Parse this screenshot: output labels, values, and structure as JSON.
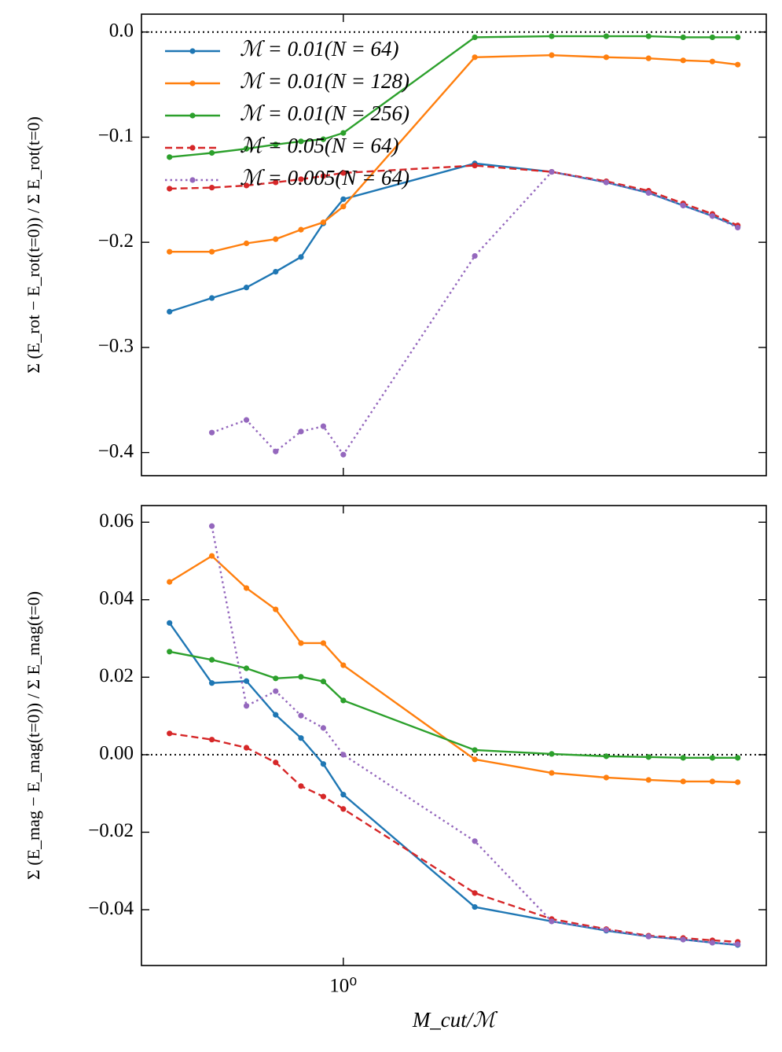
{
  "chart_data": [
    {
      "type": "line",
      "log_x": true,
      "ylabel": "Σ (E_rot − E_rot(t=0)) / Σ E_rot(t=0)",
      "x": [
        0.4,
        0.5,
        0.6,
        0.7,
        0.8,
        0.9,
        1,
        2,
        3,
        4,
        5,
        6,
        7,
        8
      ],
      "xlim": [
        0.345,
        9.3
      ],
      "ylim": [
        -0.422,
        0.017
      ],
      "yticks": [
        {
          "value": 0,
          "label": "0.0"
        },
        {
          "value": -0.1,
          "label": "−0.1"
        },
        {
          "value": -0.2,
          "label": "−0.2"
        },
        {
          "value": -0.3,
          "label": "−0.3"
        },
        {
          "value": -0.4,
          "label": "−0.4"
        }
      ],
      "reference_line": 0,
      "legend": "upper left",
      "series": [
        {
          "name": "ℳ = 0.01(N = 64)",
          "color": "#1f77b4",
          "dash": "solid",
          "values": [
            -0.266,
            -0.253,
            -0.243,
            -0.228,
            -0.214,
            -0.182,
            -0.159,
            -0.125,
            -0.133,
            -0.143,
            -0.153,
            -0.165,
            -0.175,
            -0.185
          ]
        },
        {
          "name": "ℳ = 0.01(N = 128)",
          "color": "#ff7f0e",
          "dash": "solid",
          "values": [
            -0.209,
            -0.209,
            -0.201,
            -0.197,
            -0.188,
            -0.181,
            -0.166,
            -0.024,
            -0.022,
            -0.024,
            -0.025,
            -0.027,
            -0.028,
            -0.031
          ]
        },
        {
          "name": "ℳ = 0.01(N = 256)",
          "color": "#2ca02c",
          "dash": "solid",
          "values": [
            -0.119,
            -0.115,
            -0.111,
            -0.107,
            -0.104,
            -0.102,
            -0.096,
            -0.005,
            -0.004,
            -0.004,
            -0.004,
            -0.005,
            -0.005,
            -0.005
          ]
        },
        {
          "name": "ℳ = 0.05(N = 64)",
          "color": "#d62728",
          "dash": "dashed",
          "values": [
            -0.149,
            -0.148,
            -0.146,
            -0.143,
            -0.14,
            -0.137,
            -0.134,
            -0.127,
            -0.133,
            -0.142,
            -0.151,
            -0.163,
            -0.173,
            -0.184
          ]
        },
        {
          "name": "ℳ = 0.005(N = 64)",
          "color": "#9467bd",
          "dash": "dotted",
          "values": [
            null,
            -0.381,
            -0.369,
            -0.399,
            -0.38,
            -0.375,
            -0.402,
            -0.213,
            -0.133,
            -0.143,
            -0.153,
            -0.165,
            -0.175,
            -0.186
          ]
        }
      ]
    },
    {
      "type": "line",
      "log_x": true,
      "ylabel": "Σ (E_mag − E_mag(t=0)) / Σ E_mag(t=0)",
      "xlabel": "M_cut/ℳ",
      "x": [
        0.4,
        0.5,
        0.6,
        0.7,
        0.8,
        0.9,
        1,
        2,
        3,
        4,
        5,
        6,
        7,
        8
      ],
      "xlim": [
        0.345,
        9.3
      ],
      "ylim": [
        -0.0544,
        0.0643
      ],
      "xticks": [
        {
          "value": 1,
          "label": "10⁰"
        }
      ],
      "yticks": [
        {
          "value": 0.06,
          "label": "0.06"
        },
        {
          "value": 0.04,
          "label": "0.04"
        },
        {
          "value": 0.02,
          "label": "0.02"
        },
        {
          "value": 0,
          "label": "0.00"
        },
        {
          "value": -0.02,
          "label": "−0.02"
        },
        {
          "value": -0.04,
          "label": "−0.04"
        }
      ],
      "reference_line": 0,
      "series": [
        {
          "color": "#1f77b4",
          "dash": "solid",
          "values": [
            0.034,
            0.0185,
            0.019,
            0.0103,
            0.0043,
            -0.0024,
            -0.0103,
            -0.0393,
            -0.043,
            -0.0454,
            -0.0469,
            -0.0477,
            -0.0485,
            -0.0491
          ]
        },
        {
          "color": "#ff7f0e",
          "dash": "solid",
          "values": [
            0.0446,
            0.0513,
            0.043,
            0.0375,
            0.0288,
            0.0288,
            0.0231,
            -0.0012,
            -0.0047,
            -0.0059,
            -0.0065,
            -0.0069,
            -0.0069,
            -0.0071
          ]
        },
        {
          "color": "#2ca02c",
          "dash": "solid",
          "values": [
            0.0266,
            0.0245,
            0.0223,
            0.0197,
            0.0201,
            0.0189,
            0.014,
            0.0012,
            0.0002,
            -0.0004,
            -0.0006,
            -0.0008,
            -0.0008,
            -0.0008
          ]
        },
        {
          "color": "#d62728",
          "dash": "dashed",
          "values": [
            0.0055,
            0.0039,
            0.0018,
            -0.002,
            -0.0081,
            -0.0108,
            -0.014,
            -0.0357,
            -0.0424,
            -0.045,
            -0.0467,
            -0.0473,
            -0.0479,
            -0.0483
          ]
        },
        {
          "color": "#9467bd",
          "dash": "dotted",
          "values": [
            null,
            0.059,
            0.0126,
            0.0164,
            0.0101,
            0.0069,
            0,
            -0.0223,
            -0.043,
            -0.0452,
            -0.0469,
            -0.0477,
            -0.0485,
            -0.0489
          ]
        }
      ]
    }
  ]
}
